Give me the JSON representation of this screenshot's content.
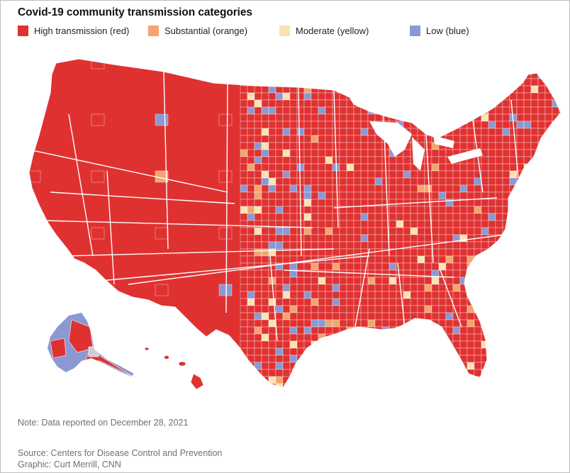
{
  "title": "Covid-19 community transmission categories",
  "legend": [
    {
      "label": "High transmission (red)",
      "color": "#e03131"
    },
    {
      "label": "Substantial (orange)",
      "color": "#f4a46e"
    },
    {
      "label": "Moderate (yellow)",
      "color": "#fbe2b4"
    },
    {
      "label": "Low (blue)",
      "color": "#8b98d2"
    }
  ],
  "colors": {
    "high": "#e03131",
    "substantial": "#f4a46e",
    "moderate": "#fbe2b4",
    "low": "#8b98d2",
    "nodata": "#cfcfcf",
    "border": "#ffffff"
  },
  "note": "Note: Data reported on December 28, 2021",
  "source": "Source: Centers for Disease Control and Prevention",
  "graphic": "Graphic: Curt Merrill, CNN"
}
